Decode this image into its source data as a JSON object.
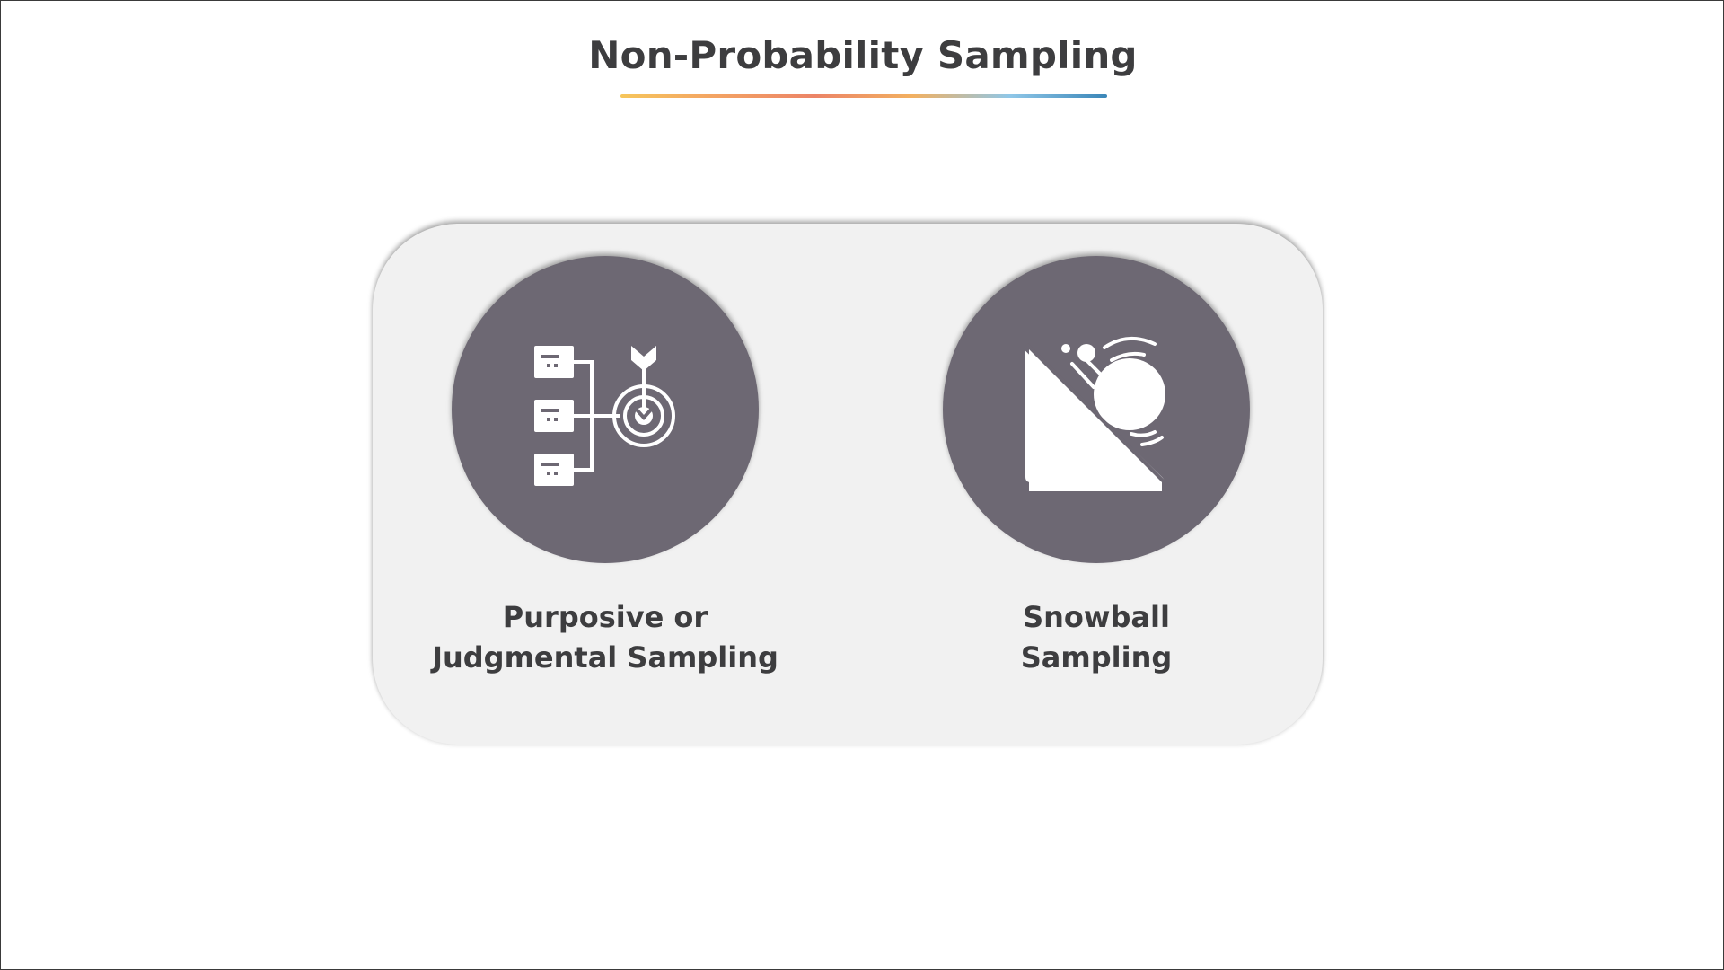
{
  "title": "Non-Probability Sampling",
  "underline_colors": [
    "#f6c65b",
    "#f3a263",
    "#ec8467",
    "#f2b060",
    "#8fc7e8",
    "#3a86b8"
  ],
  "colors": {
    "circle_fill": "#6d6873",
    "panel_fill": "#f1f1f1",
    "text": "#3d3d3f",
    "icon": "#ffffff"
  },
  "items": [
    {
      "icon": "target-flowchart-icon",
      "label_line1": "Purposive or",
      "label_line2": "Judgmental Sampling"
    },
    {
      "icon": "snowball-slope-icon",
      "label_line1": "Snowball",
      "label_line2": "Sampling"
    }
  ]
}
